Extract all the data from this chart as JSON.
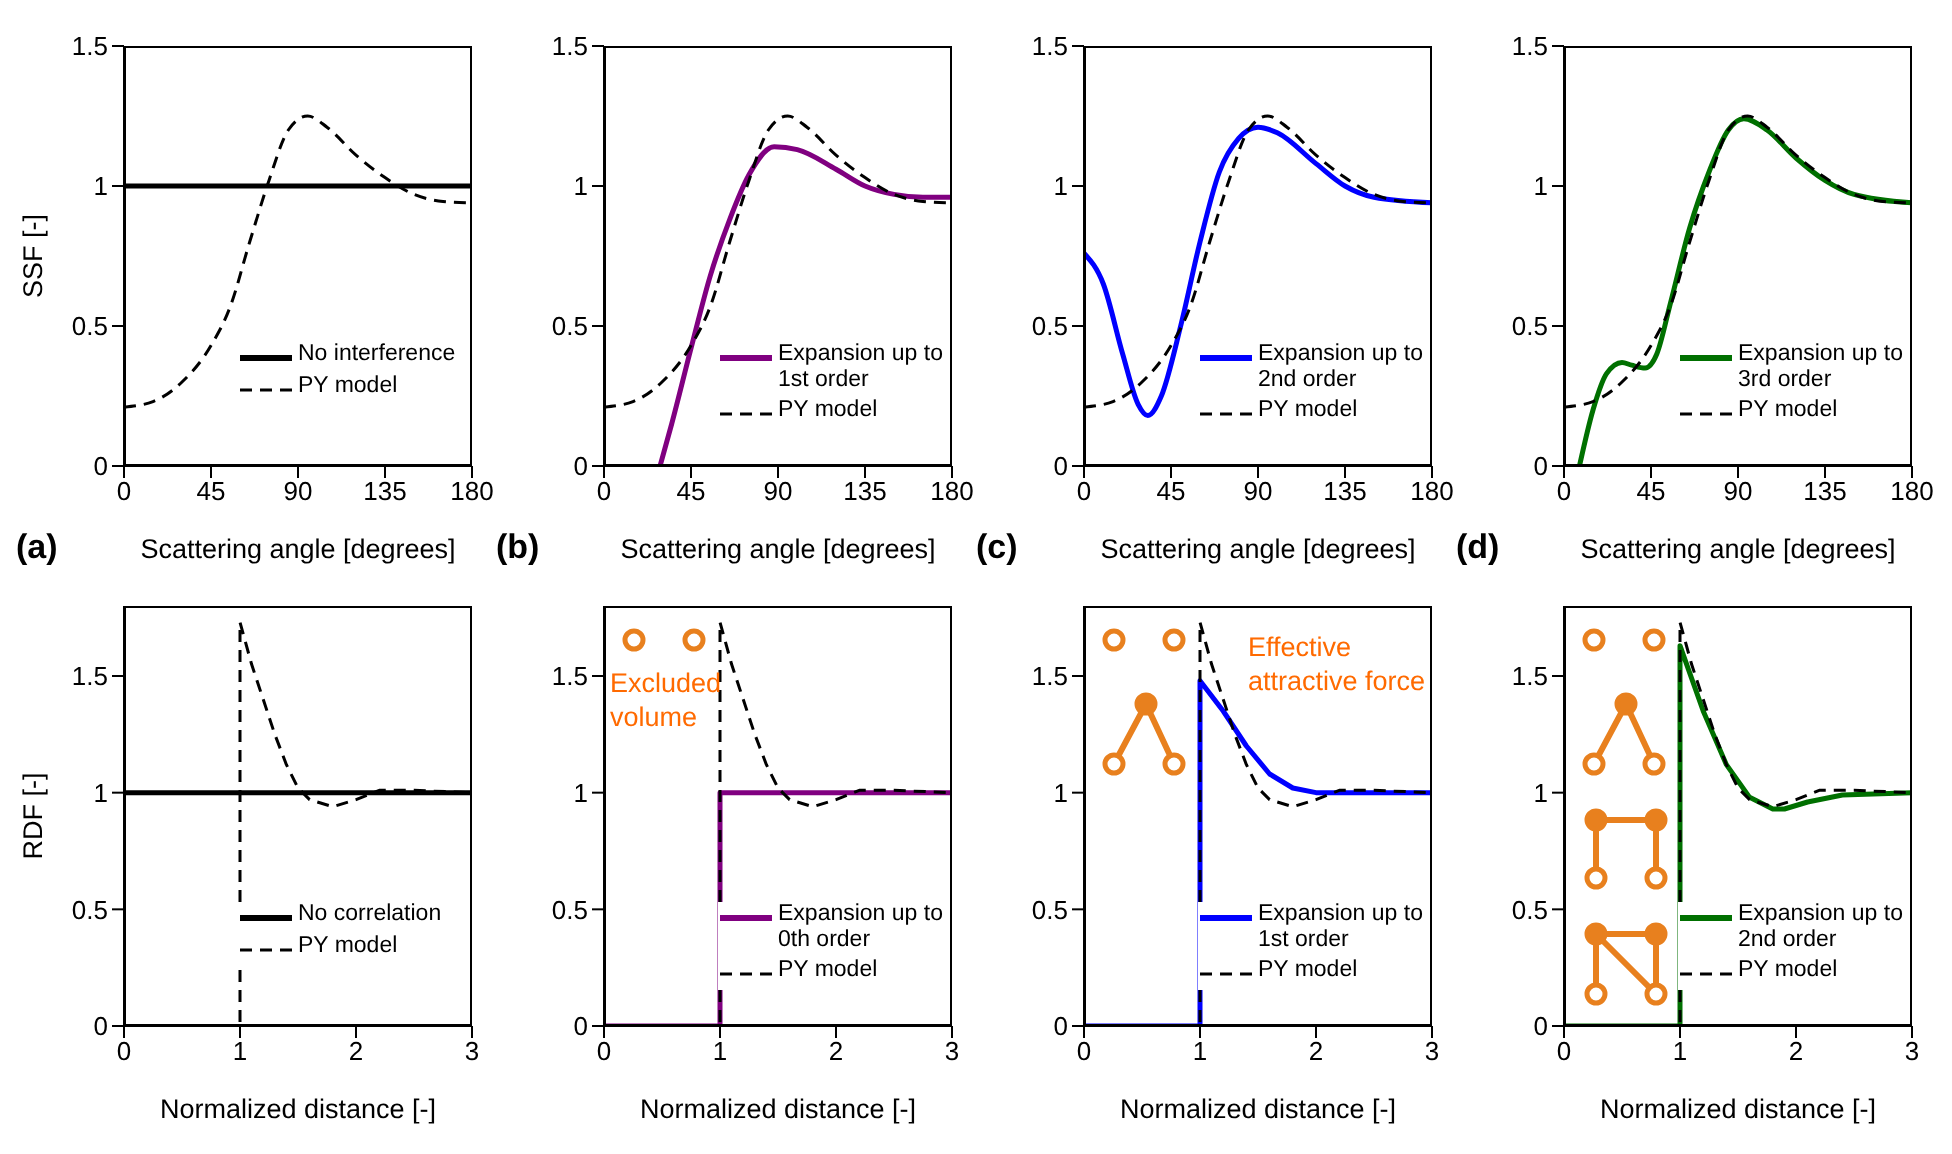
{
  "chart_data": [
    {
      "type": "line",
      "ylabel": "SSF [-]",
      "xlabel": "Scattering angle [degrees]",
      "annotations": [
        "(a)"
      ],
      "xlim": [
        0,
        180
      ],
      "xticks": [
        0,
        45,
        90,
        135,
        180
      ],
      "ylim": [
        0,
        1.5
      ],
      "yticks": [
        0,
        0.5,
        1,
        1.5
      ],
      "legend": "bottom right",
      "marker": "none",
      "series": [
        {
          "name": "No interference",
          "color": "#000000",
          "line_style": "solid",
          "x": [
            0,
            180
          ],
          "values": [
            1,
            1
          ]
        },
        {
          "name": "PY model",
          "color": "#000000",
          "line_style": "dashed",
          "x": [
            0,
            15,
            30,
            45,
            55,
            65,
            75,
            85,
            95,
            105,
            120,
            135,
            150,
            165,
            180
          ],
          "values": [
            0.21,
            0.23,
            0.3,
            0.43,
            0.57,
            0.8,
            1.02,
            1.2,
            1.25,
            1.21,
            1.11,
            1.03,
            0.97,
            0.945,
            0.94
          ]
        }
      ]
    },
    {
      "type": "line",
      "xlabel": "Scattering angle [degrees]",
      "annotations": [
        "(b)"
      ],
      "xlim": [
        0,
        180
      ],
      "xticks": [
        0,
        45,
        90,
        135,
        180
      ],
      "ylim": [
        0,
        1.5
      ],
      "yticks": [
        0,
        0.5,
        1,
        1.5
      ],
      "legend": "bottom right",
      "marker": "none",
      "series": [
        {
          "name": "Expansion up to 1st order",
          "color": "#800080",
          "line_style": "solid",
          "x": [
            29,
            35,
            45,
            55,
            65,
            75,
            88,
            100,
            120,
            135,
            150,
            165,
            180
          ],
          "values": [
            0,
            0.15,
            0.42,
            0.68,
            0.88,
            1.04,
            1.14,
            1.13,
            1.06,
            1.0,
            0.97,
            0.96,
            0.96
          ]
        },
        {
          "name": "PY model",
          "color": "#000000",
          "line_style": "dashed",
          "x": [
            0,
            15,
            30,
            45,
            55,
            65,
            75,
            85,
            95,
            105,
            120,
            135,
            150,
            165,
            180
          ],
          "values": [
            0.21,
            0.23,
            0.3,
            0.43,
            0.57,
            0.8,
            1.02,
            1.2,
            1.25,
            1.21,
            1.11,
            1.03,
            0.97,
            0.945,
            0.94
          ]
        }
      ]
    },
    {
      "type": "line",
      "xlabel": "Scattering angle [degrees]",
      "annotations": [
        "(c)"
      ],
      "xlim": [
        0,
        180
      ],
      "xticks": [
        0,
        45,
        90,
        135,
        180
      ],
      "ylim": [
        0,
        1.5
      ],
      "yticks": [
        0,
        0.5,
        1,
        1.5
      ],
      "legend": "bottom right",
      "marker": "none",
      "series": [
        {
          "name": "Expansion up to 2nd order",
          "color": "#0000ff",
          "line_style": "solid",
          "x": [
            0,
            10,
            20,
            28,
            33,
            40,
            50,
            60,
            70,
            80,
            90,
            100,
            120,
            135,
            150,
            180
          ],
          "values": [
            0.76,
            0.65,
            0.4,
            0.22,
            0.18,
            0.25,
            0.5,
            0.8,
            1.05,
            1.17,
            1.21,
            1.19,
            1.08,
            1.0,
            0.96,
            0.94
          ]
        },
        {
          "name": "PY model",
          "color": "#000000",
          "line_style": "dashed",
          "x": [
            0,
            15,
            30,
            45,
            55,
            65,
            75,
            85,
            95,
            105,
            120,
            135,
            150,
            165,
            180
          ],
          "values": [
            0.21,
            0.23,
            0.3,
            0.43,
            0.57,
            0.8,
            1.02,
            1.2,
            1.25,
            1.21,
            1.11,
            1.03,
            0.97,
            0.945,
            0.94
          ]
        }
      ]
    },
    {
      "type": "line",
      "xlabel": "Scattering angle [degrees]",
      "annotations": [
        "(d)"
      ],
      "xlim": [
        0,
        180
      ],
      "xticks": [
        0,
        45,
        90,
        135,
        180
      ],
      "ylim": [
        0,
        1.5
      ],
      "yticks": [
        0,
        0.5,
        1,
        1.5
      ],
      "legend": "bottom right",
      "marker": "none",
      "series": [
        {
          "name": "Expansion up to 3rd order",
          "color": "#007000",
          "line_style": "solid",
          "x": [
            8,
            15,
            22,
            30,
            35,
            42,
            48,
            55,
            65,
            75,
            85,
            93,
            105,
            120,
            135,
            150,
            180
          ],
          "values": [
            0,
            0.2,
            0.33,
            0.37,
            0.36,
            0.35,
            0.4,
            0.58,
            0.85,
            1.05,
            1.2,
            1.24,
            1.2,
            1.1,
            1.02,
            0.97,
            0.94
          ]
        },
        {
          "name": "PY model",
          "color": "#000000",
          "line_style": "dashed",
          "x": [
            0,
            15,
            30,
            45,
            55,
            65,
            75,
            85,
            95,
            105,
            120,
            135,
            150,
            165,
            180
          ],
          "values": [
            0.21,
            0.23,
            0.3,
            0.43,
            0.57,
            0.8,
            1.02,
            1.2,
            1.25,
            1.21,
            1.11,
            1.03,
            0.97,
            0.945,
            0.94
          ]
        }
      ]
    },
    {
      "type": "line",
      "ylabel": "RDF [-]",
      "xlabel": "Normalized distance [-]",
      "xlim": [
        0,
        3
      ],
      "xticks": [
        0,
        1,
        2,
        3
      ],
      "ylim": [
        0,
        1.8
      ],
      "yticks": [
        0,
        0.5,
        1,
        1.5
      ],
      "legend": "bottom right",
      "marker": "none",
      "series": [
        {
          "name": "No correlation",
          "color": "#000000",
          "line_style": "solid",
          "x": [
            0,
            3
          ],
          "values": [
            1,
            1
          ]
        },
        {
          "name": "PY model",
          "color": "#000000",
          "line_style": "dashed",
          "x": [
            0,
            1,
            1,
            1.1,
            1.2,
            1.3,
            1.4,
            1.5,
            1.6,
            1.8,
            2.0,
            2.2,
            2.5,
            3
          ],
          "values": [
            0,
            0,
            1.73,
            1.55,
            1.4,
            1.25,
            1.12,
            1.02,
            0.97,
            0.94,
            0.97,
            1.01,
            1.01,
            1.0
          ]
        }
      ]
    },
    {
      "type": "line",
      "xlabel": "Normalized distance [-]",
      "annotations": [
        "Excluded volume"
      ],
      "xlim": [
        0,
        3
      ],
      "xticks": [
        0,
        1,
        2,
        3
      ],
      "ylim": [
        0,
        1.8
      ],
      "yticks": [
        0,
        0.5,
        1,
        1.5
      ],
      "legend": "bottom right",
      "marker": "none",
      "series": [
        {
          "name": "Expansion up to 0th order",
          "color": "#800080",
          "line_style": "solid",
          "x": [
            0,
            1,
            1,
            3
          ],
          "values": [
            0,
            0,
            1,
            1
          ]
        },
        {
          "name": "PY model",
          "color": "#000000",
          "line_style": "dashed",
          "x": [
            0,
            1,
            1,
            1.1,
            1.2,
            1.3,
            1.4,
            1.5,
            1.6,
            1.8,
            2.0,
            2.2,
            2.5,
            3
          ],
          "values": [
            0,
            0,
            1.73,
            1.55,
            1.4,
            1.25,
            1.12,
            1.02,
            0.97,
            0.94,
            0.97,
            1.01,
            1.01,
            1.0
          ]
        }
      ]
    },
    {
      "type": "line",
      "xlabel": "Normalized distance [-]",
      "annotations": [
        "Effective attractive force"
      ],
      "xlim": [
        0,
        3
      ],
      "xticks": [
        0,
        1,
        2,
        3
      ],
      "ylim": [
        0,
        1.8
      ],
      "yticks": [
        0,
        0.5,
        1,
        1.5
      ],
      "legend": "bottom right",
      "marker": "none",
      "series": [
        {
          "name": "Expansion up to 1st order",
          "color": "#0000ff",
          "line_style": "solid",
          "x": [
            0,
            1,
            1,
            1.2,
            1.4,
            1.6,
            1.8,
            2,
            3
          ],
          "values": [
            0,
            0,
            1.48,
            1.35,
            1.2,
            1.08,
            1.02,
            1.0,
            1.0
          ]
        },
        {
          "name": "PY model",
          "color": "#000000",
          "line_style": "dashed",
          "x": [
            0,
            1,
            1,
            1.1,
            1.2,
            1.3,
            1.4,
            1.5,
            1.6,
            1.8,
            2.0,
            2.2,
            2.5,
            3
          ],
          "values": [
            0,
            0,
            1.73,
            1.55,
            1.4,
            1.25,
            1.12,
            1.02,
            0.97,
            0.94,
            0.97,
            1.01,
            1.01,
            1.0
          ]
        }
      ]
    },
    {
      "type": "line",
      "xlabel": "Normalized distance [-]",
      "xlim": [
        0,
        3
      ],
      "xticks": [
        0,
        1,
        2,
        3
      ],
      "ylim": [
        0,
        1.8
      ],
      "yticks": [
        0,
        0.5,
        1,
        1.5
      ],
      "legend": "bottom right",
      "marker": "none",
      "series": [
        {
          "name": "Expansion up to 2nd order",
          "color": "#007000",
          "line_style": "solid",
          "x": [
            0,
            1,
            1,
            1.2,
            1.4,
            1.6,
            1.8,
            1.9,
            2.1,
            2.4,
            3
          ],
          "values": [
            0,
            0,
            1.63,
            1.35,
            1.12,
            0.98,
            0.93,
            0.93,
            0.96,
            0.99,
            1.0
          ]
        },
        {
          "name": "PY model",
          "color": "#000000",
          "line_style": "dashed",
          "x": [
            0,
            1,
            1,
            1.1,
            1.2,
            1.3,
            1.4,
            1.5,
            1.6,
            1.8,
            2.0,
            2.2,
            2.5,
            3
          ],
          "values": [
            0,
            0,
            1.73,
            1.55,
            1.4,
            1.25,
            1.12,
            1.02,
            0.97,
            0.94,
            0.97,
            1.01,
            1.01,
            1.0
          ]
        }
      ]
    }
  ]
}
